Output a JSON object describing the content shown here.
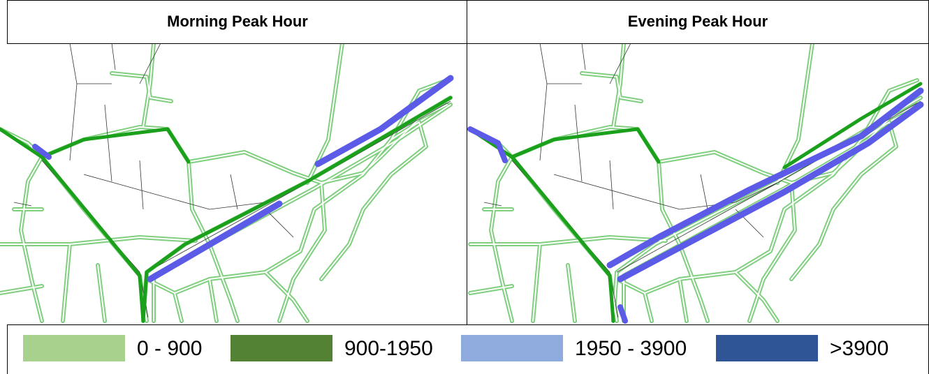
{
  "panels": [
    {
      "title": "Morning Peak Hour"
    },
    {
      "title": "Evening Peak Hour"
    }
  ],
  "legend": [
    {
      "label": "0 - 900",
      "color": "#a9d18e"
    },
    {
      "label": "900-1950",
      "color": "#548235"
    },
    {
      "label": "1950 - 3900",
      "color": "#8faadc"
    },
    {
      "label": ">3900",
      "color": "#2f5597"
    }
  ]
}
